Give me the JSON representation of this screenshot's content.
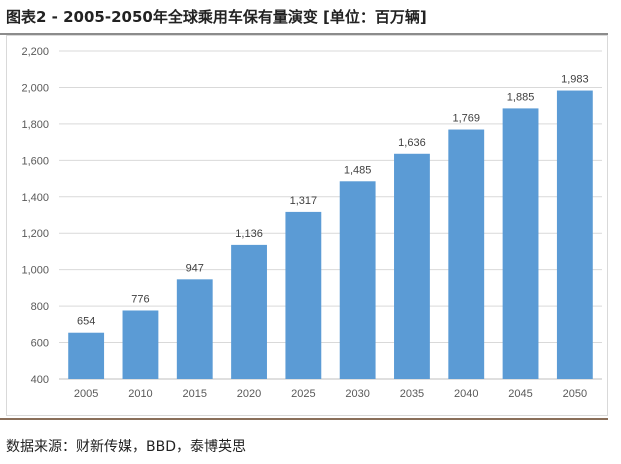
{
  "header": {
    "title": "图表2 - 2005-2050年全球乘用车保有量演变 [单位：百万辆]"
  },
  "footer": {
    "source": "数据来源：财新传媒，BBD，泰博英思"
  },
  "colors": {
    "bar": "#5b9bd5",
    "grid": "#d9d9d9",
    "axis": "#bfbfbf"
  },
  "chart_data": {
    "type": "bar",
    "title": "2005-2050年全球乘用车保有量演变",
    "xlabel": "",
    "ylabel": "",
    "unit": "百万辆",
    "categories": [
      "2005",
      "2010",
      "2015",
      "2020",
      "2025",
      "2030",
      "2035",
      "2040",
      "2045",
      "2050"
    ],
    "values": [
      654,
      776,
      947,
      1136,
      1317,
      1485,
      1636,
      1769,
      1885,
      1983
    ],
    "data_labels": [
      "654",
      "776",
      "947",
      "1,136",
      "1,317",
      "1,485",
      "1,636",
      "1,769",
      "1,885",
      "1,983"
    ],
    "ylim": [
      400,
      2200
    ],
    "yticks": [
      400,
      600,
      800,
      1000,
      1200,
      1400,
      1600,
      1800,
      2000,
      2200
    ],
    "ytick_labels": [
      "400",
      "600",
      "800",
      "1,000",
      "1,200",
      "1,400",
      "1,600",
      "1,800",
      "2,000",
      "2,200"
    ],
    "grid": true,
    "legend": "none"
  }
}
